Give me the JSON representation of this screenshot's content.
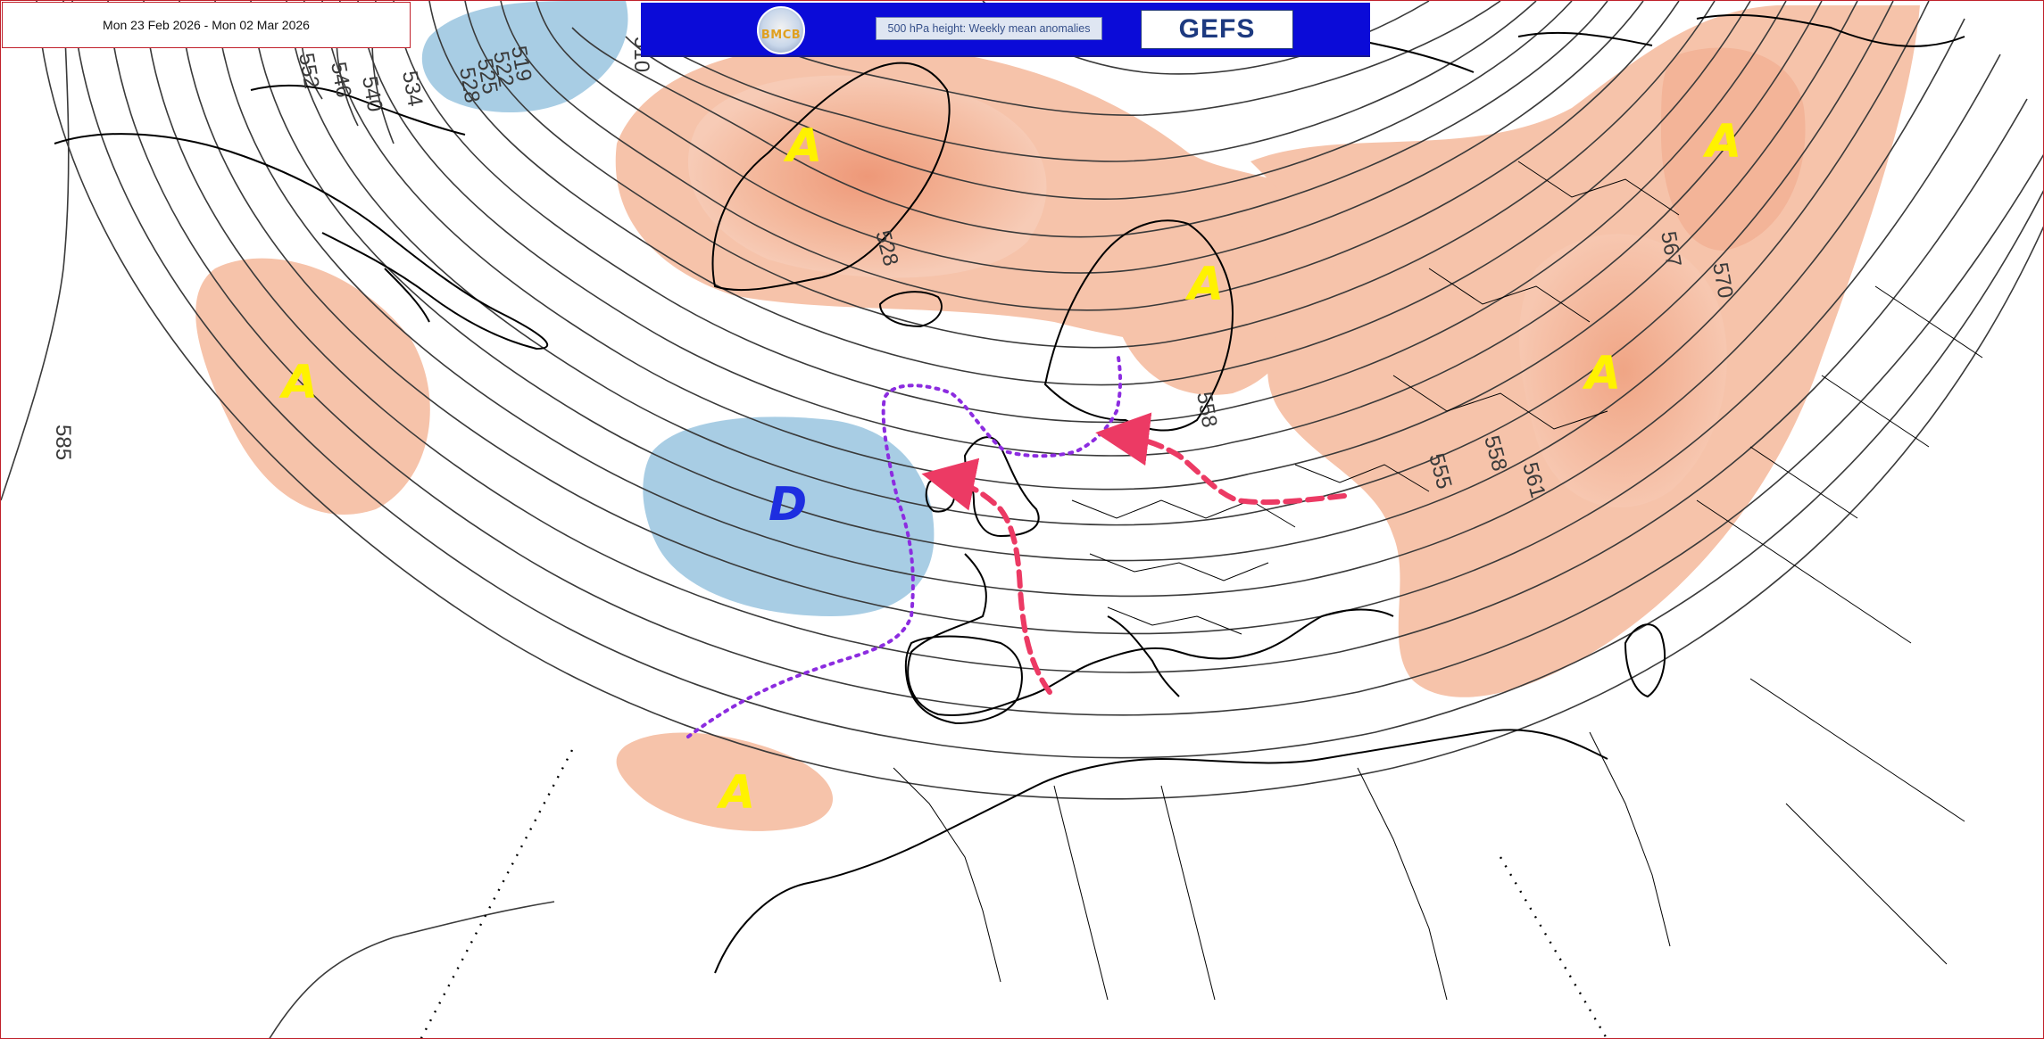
{
  "header": {
    "date_range": "Mon 23 Feb 2026 - Mon 02 Mar 2026",
    "logo_text": "BMCB",
    "subtitle": "500 hPa height: Weekly mean anomalies",
    "model": "GEFS"
  },
  "contour_labels": [
    "510",
    "519",
    "522",
    "525",
    "528",
    "534",
    "540",
    "546",
    "552",
    "528",
    "558",
    "555",
    "558",
    "561",
    "567",
    "570",
    "585"
  ],
  "anomaly_labels": [
    "A",
    "A",
    "A",
    "A",
    "A",
    "A",
    "D"
  ],
  "colors": {
    "positive_anomaly": "#f6c3aa",
    "positive_anomaly_strong": "#ef9c7c",
    "negative_anomaly": "#a8cde4",
    "high_marker": "#fff200",
    "low_marker": "#1e2ee0",
    "trough_line": "#8c2ce0",
    "flow_arrow": "#ec3a64",
    "contour": "#3a3a3a",
    "coastline": "#000000",
    "banner": "#0b0bd8"
  },
  "icons": [
    "bmcb-logo-icon"
  ]
}
